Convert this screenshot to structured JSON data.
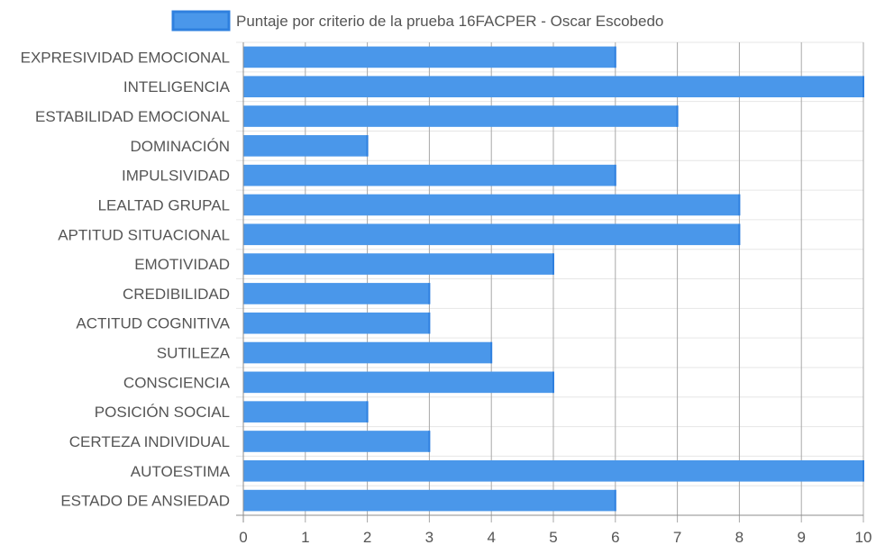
{
  "chart_data": {
    "type": "bar",
    "orientation": "horizontal",
    "categories": [
      "EXPRESIVIDAD EMOCIONAL",
      "INTELIGENCIA",
      "ESTABILIDAD EMOCIONAL",
      "DOMINACIÓN",
      "IMPULSIVIDAD",
      "LEALTAD GRUPAL",
      "APTITUD SITUACIONAL",
      "EMOTIVIDAD",
      "CREDIBILIDAD",
      "ACTITUD COGNITIVA",
      "SUTILEZA",
      "CONSCIENCIA",
      "POSICIÓN SOCIAL",
      "CERTEZA INDIVIDUAL",
      "AUTOESTIMA",
      "ESTADO DE ANSIEDAD"
    ],
    "series": [
      {
        "name": "Puntaje por criterio de la prueba 16FACPER - Oscar Escobedo",
        "values": [
          6,
          10,
          7,
          2,
          6,
          8,
          8,
          5,
          3,
          3,
          4,
          5,
          2,
          3,
          10,
          6
        ],
        "color": "#4a97ea",
        "border_color": "#2f80df"
      }
    ],
    "xlim": [
      0,
      10
    ],
    "x_ticks": [
      0,
      1,
      2,
      3,
      4,
      5,
      6,
      7,
      8,
      9,
      10
    ],
    "grid": true,
    "legend_position": "top"
  }
}
